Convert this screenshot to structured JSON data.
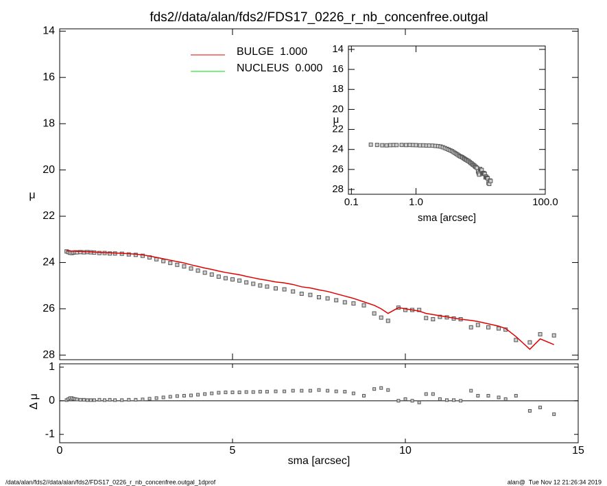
{
  "chart_data": [
    {
      "type": "scatter",
      "title": "fds2//data/alan/fds2/FDS17_0226_r_nb_concenfree.outgal",
      "ylabel": "μ",
      "xlim": [
        0,
        15
      ],
      "ylim": [
        28.2,
        13.9
      ],
      "xticks": [
        0,
        5,
        10,
        15
      ],
      "yticks": [
        14,
        16,
        18,
        20,
        22,
        24,
        26,
        28
      ],
      "x": [
        0.2,
        0.25,
        0.3,
        0.35,
        0.4,
        0.45,
        0.5,
        0.6,
        0.7,
        0.8,
        0.9,
        1.0,
        1.15,
        1.3,
        1.45,
        1.6,
        1.8,
        2.0,
        2.2,
        2.4,
        2.6,
        2.8,
        3.0,
        3.2,
        3.4,
        3.6,
        3.8,
        4.0,
        4.2,
        4.4,
        4.6,
        4.8,
        5.0,
        5.2,
        5.4,
        5.6,
        5.8,
        6.0,
        6.25,
        6.5,
        6.75,
        7.0,
        7.25,
        7.5,
        7.75,
        8.0,
        8.25,
        8.5,
        8.8,
        9.1,
        9.3,
        9.5,
        9.8,
        10.0,
        10.2,
        10.4,
        10.6,
        10.8,
        11.0,
        11.2,
        11.4,
        11.6,
        11.9,
        12.1,
        12.4,
        12.7,
        12.9,
        13.2,
        13.6,
        13.9,
        14.3
      ],
      "points": {
        "color": "#555555",
        "values": [
          23.52,
          23.55,
          23.58,
          23.59,
          23.57,
          23.56,
          23.56,
          23.55,
          23.56,
          23.55,
          23.56,
          23.57,
          23.59,
          23.59,
          23.61,
          23.61,
          23.62,
          23.65,
          23.67,
          23.71,
          23.78,
          23.86,
          23.94,
          24.02,
          24.1,
          24.17,
          24.26,
          24.35,
          24.44,
          24.52,
          24.61,
          24.68,
          24.73,
          24.78,
          24.86,
          24.92,
          24.99,
          25.04,
          25.12,
          25.16,
          25.25,
          25.35,
          25.4,
          25.5,
          25.55,
          25.63,
          25.72,
          25.77,
          25.85,
          26.2,
          26.38,
          26.52,
          25.95,
          26.05,
          26.05,
          26.05,
          26.4,
          26.45,
          26.35,
          26.37,
          26.42,
          26.45,
          26.8,
          26.7,
          26.8,
          26.85,
          26.9,
          27.35,
          27.45,
          27.1,
          27.15
        ]
      },
      "model": {
        "color": "#e00000",
        "values": [
          23.5,
          23.5,
          23.5,
          23.51,
          23.51,
          23.51,
          23.52,
          23.52,
          23.53,
          23.53,
          23.54,
          23.55,
          23.56,
          23.57,
          23.58,
          23.59,
          23.6,
          23.62,
          23.64,
          23.67,
          23.72,
          23.78,
          23.84,
          23.9,
          23.96,
          24.02,
          24.1,
          24.17,
          24.24,
          24.3,
          24.37,
          24.43,
          24.48,
          24.53,
          24.6,
          24.66,
          24.72,
          24.77,
          24.84,
          24.88,
          24.95,
          25.05,
          25.1,
          25.18,
          25.25,
          25.35,
          25.45,
          25.55,
          25.7,
          25.85,
          26.0,
          26.2,
          25.95,
          26.0,
          26.05,
          26.1,
          26.2,
          26.25,
          26.3,
          26.35,
          26.4,
          26.45,
          26.5,
          26.55,
          26.65,
          26.75,
          26.85,
          27.2,
          27.75,
          27.3,
          27.55
        ]
      },
      "legend": [
        {
          "name": "BULGE  1.000",
          "color": "#e00000"
        },
        {
          "name": "NUCLEUS  0.000",
          "color": "#00e000"
        }
      ]
    },
    {
      "type": "scatter",
      "ylabel": "Δ μ",
      "xlabel": "sma [arcsec]",
      "xlim": [
        0,
        15
      ],
      "ylim": [
        -1.25,
        1.1
      ],
      "xticks": [
        0,
        5,
        10,
        15
      ],
      "yticks": [
        -1,
        0,
        1
      ],
      "zero_line": true,
      "color": "#555555",
      "values": [
        0.02,
        0.05,
        0.08,
        0.08,
        0.06,
        0.05,
        0.04,
        0.03,
        0.03,
        0.02,
        0.02,
        0.02,
        0.03,
        0.02,
        0.03,
        0.02,
        0.02,
        0.03,
        0.03,
        0.04,
        0.06,
        0.08,
        0.1,
        0.12,
        0.14,
        0.15,
        0.16,
        0.18,
        0.2,
        0.22,
        0.24,
        0.25,
        0.25,
        0.25,
        0.26,
        0.26,
        0.27,
        0.27,
        0.28,
        0.28,
        0.3,
        0.3,
        0.3,
        0.32,
        0.3,
        0.28,
        0.27,
        0.22,
        0.15,
        0.35,
        0.38,
        0.32,
        0.0,
        0.05,
        0.0,
        -0.05,
        0.2,
        0.2,
        0.05,
        0.02,
        0.02,
        0.0,
        0.3,
        0.15,
        0.15,
        0.1,
        0.05,
        0.15,
        -0.3,
        -0.2,
        -0.4
      ]
    },
    {
      "type": "scatter",
      "ylabel": "μ",
      "xlabel": "sma [arcsec]",
      "xlog": true,
      "xlim": [
        0.09,
        100
      ],
      "ylim": [
        28.48,
        13.66
      ],
      "xticks": [
        {
          "value": 0.1,
          "label": "0.1"
        },
        {
          "value": 1,
          "label": "1.0"
        },
        {
          "value": 100,
          "label": "100.0"
        }
      ],
      "yticks": [
        14,
        16,
        18,
        20,
        22,
        24,
        26,
        28
      ]
    }
  ],
  "footer": {
    "left": "/data/alan/fds2//data/alan/fds2/FDS17_0226_r_nb_concenfree.outgal_1dprof",
    "right": "alan@  Tue Nov 12 21:26:34 2019"
  }
}
